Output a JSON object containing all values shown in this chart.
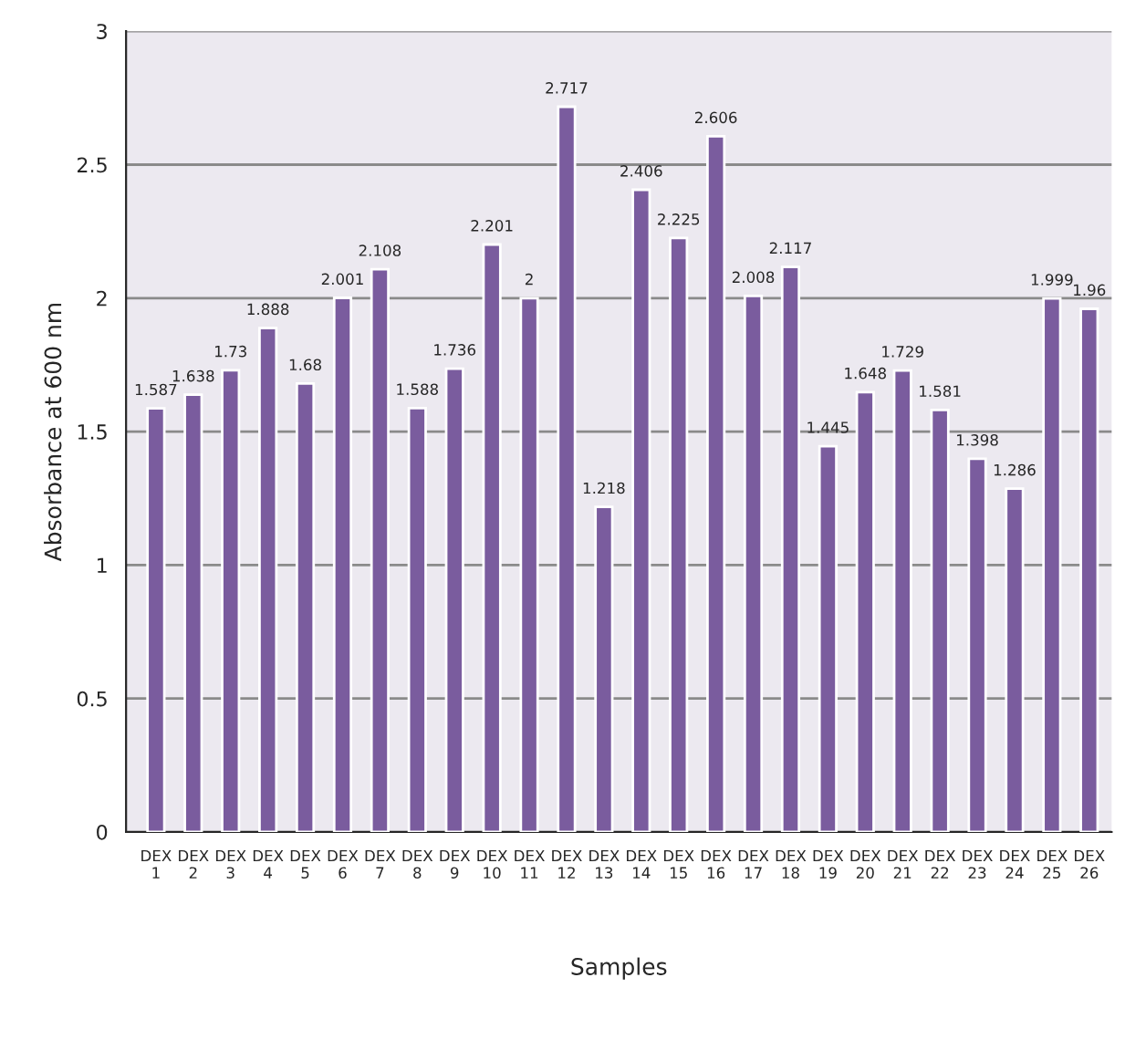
{
  "chart_data": {
    "type": "bar",
    "xlabel": "Samples",
    "ylabel": "Absorbance at 600 nm",
    "categories": [
      "DEX\n1",
      "DEX\n2",
      "DEX\n3",
      "DEX\n4",
      "DEX\n5",
      "DEX\n6",
      "DEX\n7",
      "DEX\n8",
      "DEX\n9",
      "DEX\n10",
      "DEX\n11",
      "DEX\n12",
      "DEX\n13",
      "DEX\n14",
      "DEX\n15",
      "DEX\n16",
      "DEX\n17",
      "DEX\n18",
      "DEX\n19",
      "DEX\n20",
      "DEX\n21",
      "DEX\n22",
      "DEX\n23",
      "DEX\n24",
      "DEX\n25",
      "DEX\n26"
    ],
    "values": [
      1.587,
      1.638,
      1.73,
      1.888,
      1.68,
      2.001,
      2.108,
      1.588,
      1.736,
      2.201,
      2,
      2.717,
      1.218,
      2.406,
      2.225,
      2.606,
      2.008,
      2.117,
      1.445,
      1.648,
      1.729,
      1.581,
      1.398,
      1.286,
      1.999,
      1.96
    ],
    "color": "#7a5c9e",
    "data_labels": true,
    "ylim": [
      0,
      3
    ],
    "yticks": [
      0,
      0.5,
      1,
      1.5,
      2,
      2.5,
      3
    ],
    "grid": "y",
    "legend": false
  }
}
